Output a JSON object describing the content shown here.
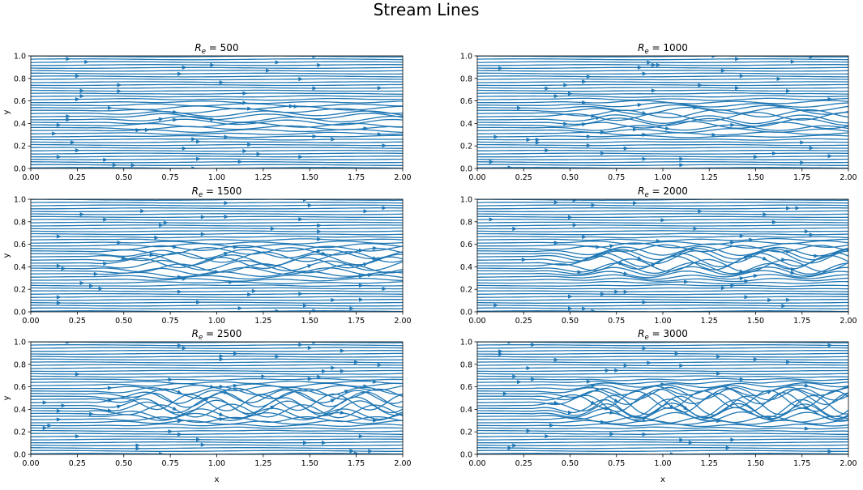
{
  "figure_title": "Stream Lines",
  "chart_data": [
    {
      "type": "streamplot",
      "title": "R_e = 500",
      "title_prefix": "R",
      "title_sub": "e",
      "title_value": "= 500",
      "re": 500,
      "xlabel": "",
      "ylabel": "y",
      "xlim": [
        0,
        2
      ],
      "ylim": [
        0,
        1
      ],
      "xticks": [
        "0.00",
        "0.25",
        "0.50",
        "0.75",
        "1.00",
        "1.25",
        "1.50",
        "1.75",
        "2.00"
      ],
      "yticks": [
        "0.0",
        "0.2",
        "0.4",
        "0.6",
        "0.8",
        "1.0"
      ]
    },
    {
      "type": "streamplot",
      "title": "R_e = 1000",
      "title_prefix": "R",
      "title_sub": "e",
      "title_value": "= 1000",
      "re": 1000,
      "xlabel": "",
      "ylabel": "",
      "xlim": [
        0,
        2
      ],
      "ylim": [
        0,
        1
      ],
      "xticks": [
        "0.00",
        "0.25",
        "0.50",
        "0.75",
        "1.00",
        "1.25",
        "1.50",
        "1.75",
        "2.00"
      ],
      "yticks": [
        "0.0",
        "0.2",
        "0.4",
        "0.6",
        "0.8",
        "1.0"
      ]
    },
    {
      "type": "streamplot",
      "title": "R_e = 1500",
      "title_prefix": "R",
      "title_sub": "e",
      "title_value": "= 1500",
      "re": 1500,
      "xlabel": "",
      "ylabel": "y",
      "xlim": [
        0,
        2
      ],
      "ylim": [
        0,
        1
      ],
      "xticks": [
        "0.00",
        "0.25",
        "0.50",
        "0.75",
        "1.00",
        "1.25",
        "1.50",
        "1.75",
        "2.00"
      ],
      "yticks": [
        "0.0",
        "0.2",
        "0.4",
        "0.6",
        "0.8",
        "1.0"
      ]
    },
    {
      "type": "streamplot",
      "title": "R_e = 2000",
      "title_prefix": "R",
      "title_sub": "e",
      "title_value": "= 2000",
      "re": 2000,
      "xlabel": "",
      "ylabel": "",
      "xlim": [
        0,
        2
      ],
      "ylim": [
        0,
        1
      ],
      "xticks": [
        "0.00",
        "0.25",
        "0.50",
        "0.75",
        "1.00",
        "1.25",
        "1.50",
        "1.75",
        "2.00"
      ],
      "yticks": [
        "0.0",
        "0.2",
        "0.4",
        "0.6",
        "0.8",
        "1.0"
      ]
    },
    {
      "type": "streamplot",
      "title": "R_e = 2500",
      "title_prefix": "R",
      "title_sub": "e",
      "title_value": "= 2500",
      "re": 2500,
      "xlabel": "x",
      "ylabel": "y",
      "xlim": [
        0,
        2
      ],
      "ylim": [
        0,
        1
      ],
      "xticks": [
        "0.00",
        "0.25",
        "0.50",
        "0.75",
        "1.00",
        "1.25",
        "1.50",
        "1.75",
        "2.00"
      ],
      "yticks": [
        "0.0",
        "0.2",
        "0.4",
        "0.6",
        "0.8",
        "1.0"
      ]
    },
    {
      "type": "streamplot",
      "title": "R_e = 3000",
      "title_prefix": "R",
      "title_sub": "e",
      "title_value": "= 3000",
      "re": 3000,
      "xlabel": "x",
      "ylabel": "",
      "xlim": [
        0,
        2
      ],
      "ylim": [
        0,
        1
      ],
      "xticks": [
        "0.00",
        "0.25",
        "0.50",
        "0.75",
        "1.00",
        "1.25",
        "1.50",
        "1.75",
        "2.00"
      ],
      "yticks": [
        "0.0",
        "0.2",
        "0.4",
        "0.6",
        "0.8",
        "1.0"
      ]
    }
  ],
  "colors": {
    "stream": "#1f77b4",
    "axis": "#000000",
    "background": "#ffffff"
  }
}
